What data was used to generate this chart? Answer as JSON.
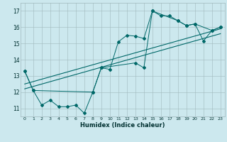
{
  "title": "",
  "xlabel": "Humidex (Indice chaleur)",
  "xlim": [
    -0.5,
    23.5
  ],
  "ylim": [
    10.5,
    17.5
  ],
  "yticks": [
    11,
    12,
    13,
    14,
    15,
    16,
    17
  ],
  "xticks": [
    0,
    1,
    2,
    3,
    4,
    5,
    6,
    7,
    8,
    9,
    10,
    11,
    12,
    13,
    14,
    15,
    16,
    17,
    18,
    19,
    20,
    21,
    22,
    23
  ],
  "bg_color": "#cce8ee",
  "grid_color": "#b0c8cc",
  "line_color": "#006868",
  "line1_x": [
    0,
    1,
    2,
    3,
    4,
    5,
    6,
    7,
    8,
    9,
    10,
    11,
    12,
    13,
    14,
    15,
    16,
    17,
    18,
    19,
    20,
    21,
    22,
    23
  ],
  "line1_y": [
    13.3,
    12.1,
    11.2,
    11.5,
    11.1,
    11.1,
    11.2,
    10.7,
    12.0,
    13.5,
    13.4,
    15.1,
    15.5,
    15.45,
    15.3,
    17.0,
    16.7,
    16.7,
    16.4,
    16.1,
    16.2,
    15.15,
    15.8,
    16.0
  ],
  "line2_x": [
    0,
    1,
    8,
    9,
    13,
    14,
    15,
    18,
    19,
    20,
    22,
    23
  ],
  "line2_y": [
    13.3,
    12.1,
    12.0,
    13.5,
    13.8,
    13.5,
    17.0,
    16.4,
    16.1,
    16.2,
    15.8,
    16.0
  ],
  "line3_x": [
    0,
    23
  ],
  "line3_y": [
    12.5,
    15.9
  ],
  "line4_x": [
    0,
    23
  ],
  "line4_y": [
    12.2,
    15.6
  ]
}
